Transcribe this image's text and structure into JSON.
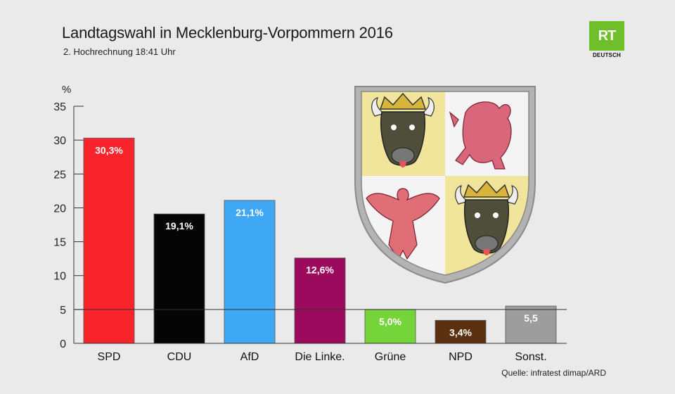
{
  "header": {
    "title": "Landtagswahl in Mecklenburg-Vorpommern 2016",
    "subtitle": "2. Hochrechnung 18:41 Uhr"
  },
  "source": "Quelle: infratest dimap/ARD",
  "logo": {
    "mark": "RT",
    "sub": "DEUTSCH",
    "color": "#6fbf2a",
    "icon": "rt-deutsch-logo"
  },
  "coat_of_arms": {
    "icon": "mecklenburg-vorpommern-coat-of-arms-icon"
  },
  "chart_data": {
    "type": "bar",
    "ylabel": "%",
    "ylim": [
      0,
      35
    ],
    "yticks": [
      0,
      5,
      10,
      15,
      20,
      25,
      30,
      35
    ],
    "reference_line": 5,
    "grid": false,
    "categories": [
      "SPD",
      "CDU",
      "AfD",
      "Die Linke.",
      "Grüne",
      "NPD",
      "Sonst."
    ],
    "values": [
      30.3,
      19.1,
      21.1,
      12.6,
      5.0,
      3.4,
      5.5
    ],
    "labels": [
      "30,3%",
      "19,1%",
      "21,1%",
      "12,6%",
      "5,0%",
      "3,4%",
      "5,5"
    ],
    "colors": [
      "#f8232b",
      "#050505",
      "#3fa8f5",
      "#9b0a5c",
      "#74d439",
      "#5b3010",
      "#9d9d9d"
    ]
  }
}
